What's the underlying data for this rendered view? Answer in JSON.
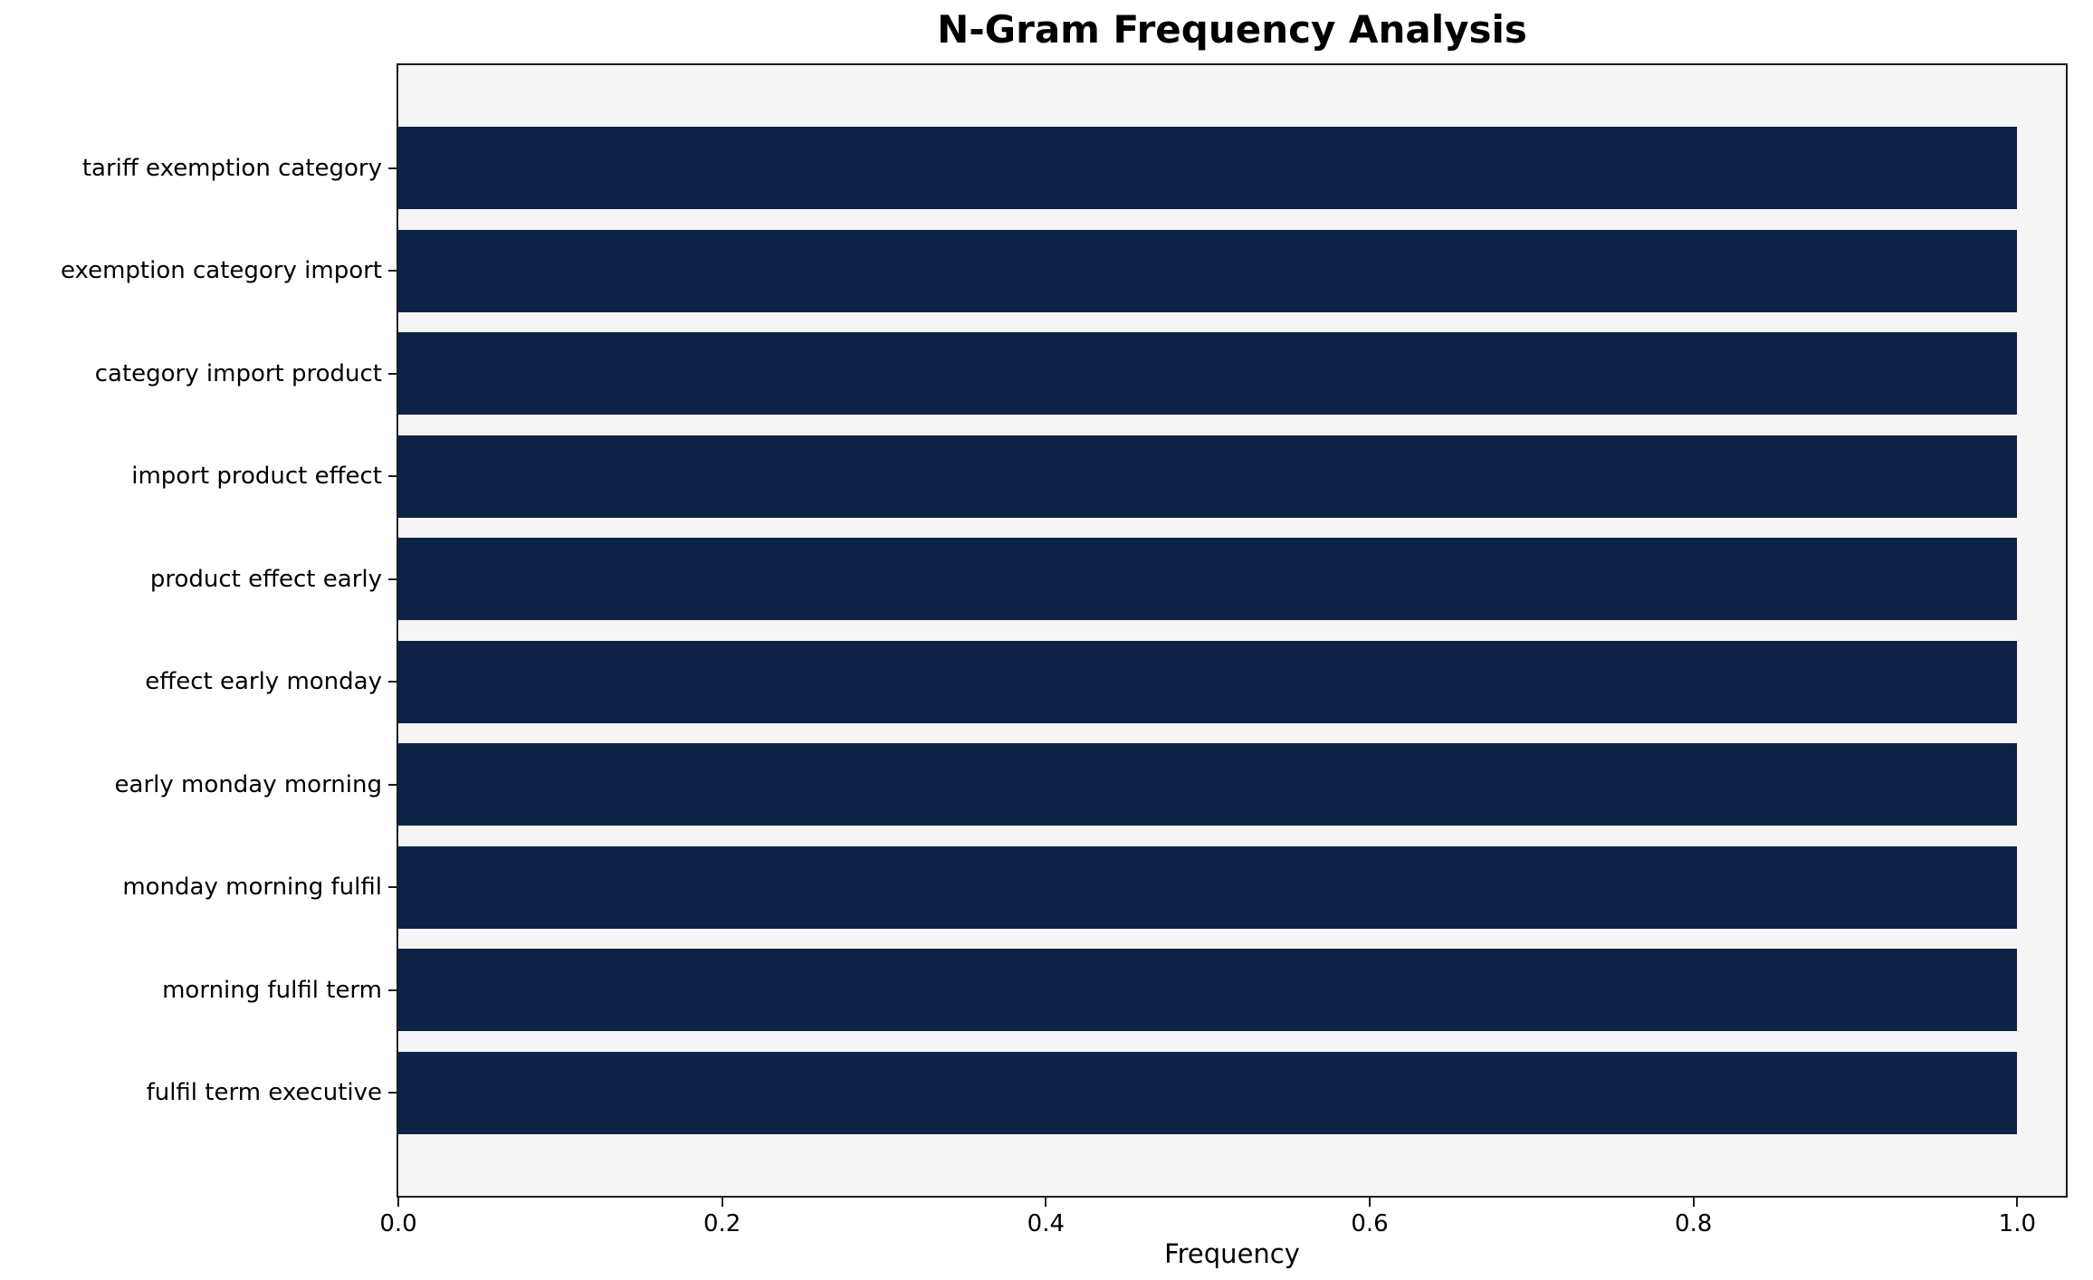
{
  "chart_data": {
    "type": "bar",
    "orientation": "horizontal",
    "title": "N-Gram Frequency Analysis",
    "xlabel": "Frequency",
    "ylabel": "",
    "categories": [
      "tariff exemption category",
      "exemption category import",
      "category import product",
      "import product effect",
      "product effect early",
      "effect early monday",
      "early monday morning",
      "monday morning fulfil",
      "morning fulfil term",
      "fulfil term executive"
    ],
    "values": [
      1.0,
      1.0,
      1.0,
      1.0,
      1.0,
      1.0,
      1.0,
      1.0,
      1.0,
      1.0
    ],
    "xlim": [
      0,
      1.03
    ],
    "xticks": [
      0.0,
      0.2,
      0.4,
      0.6,
      0.8,
      1.0
    ],
    "bar_color": "#0e2246",
    "plot_bg": "#f5f5f5",
    "spine_color": "#1c1c1c",
    "grid": false,
    "legend_position": "none"
  }
}
